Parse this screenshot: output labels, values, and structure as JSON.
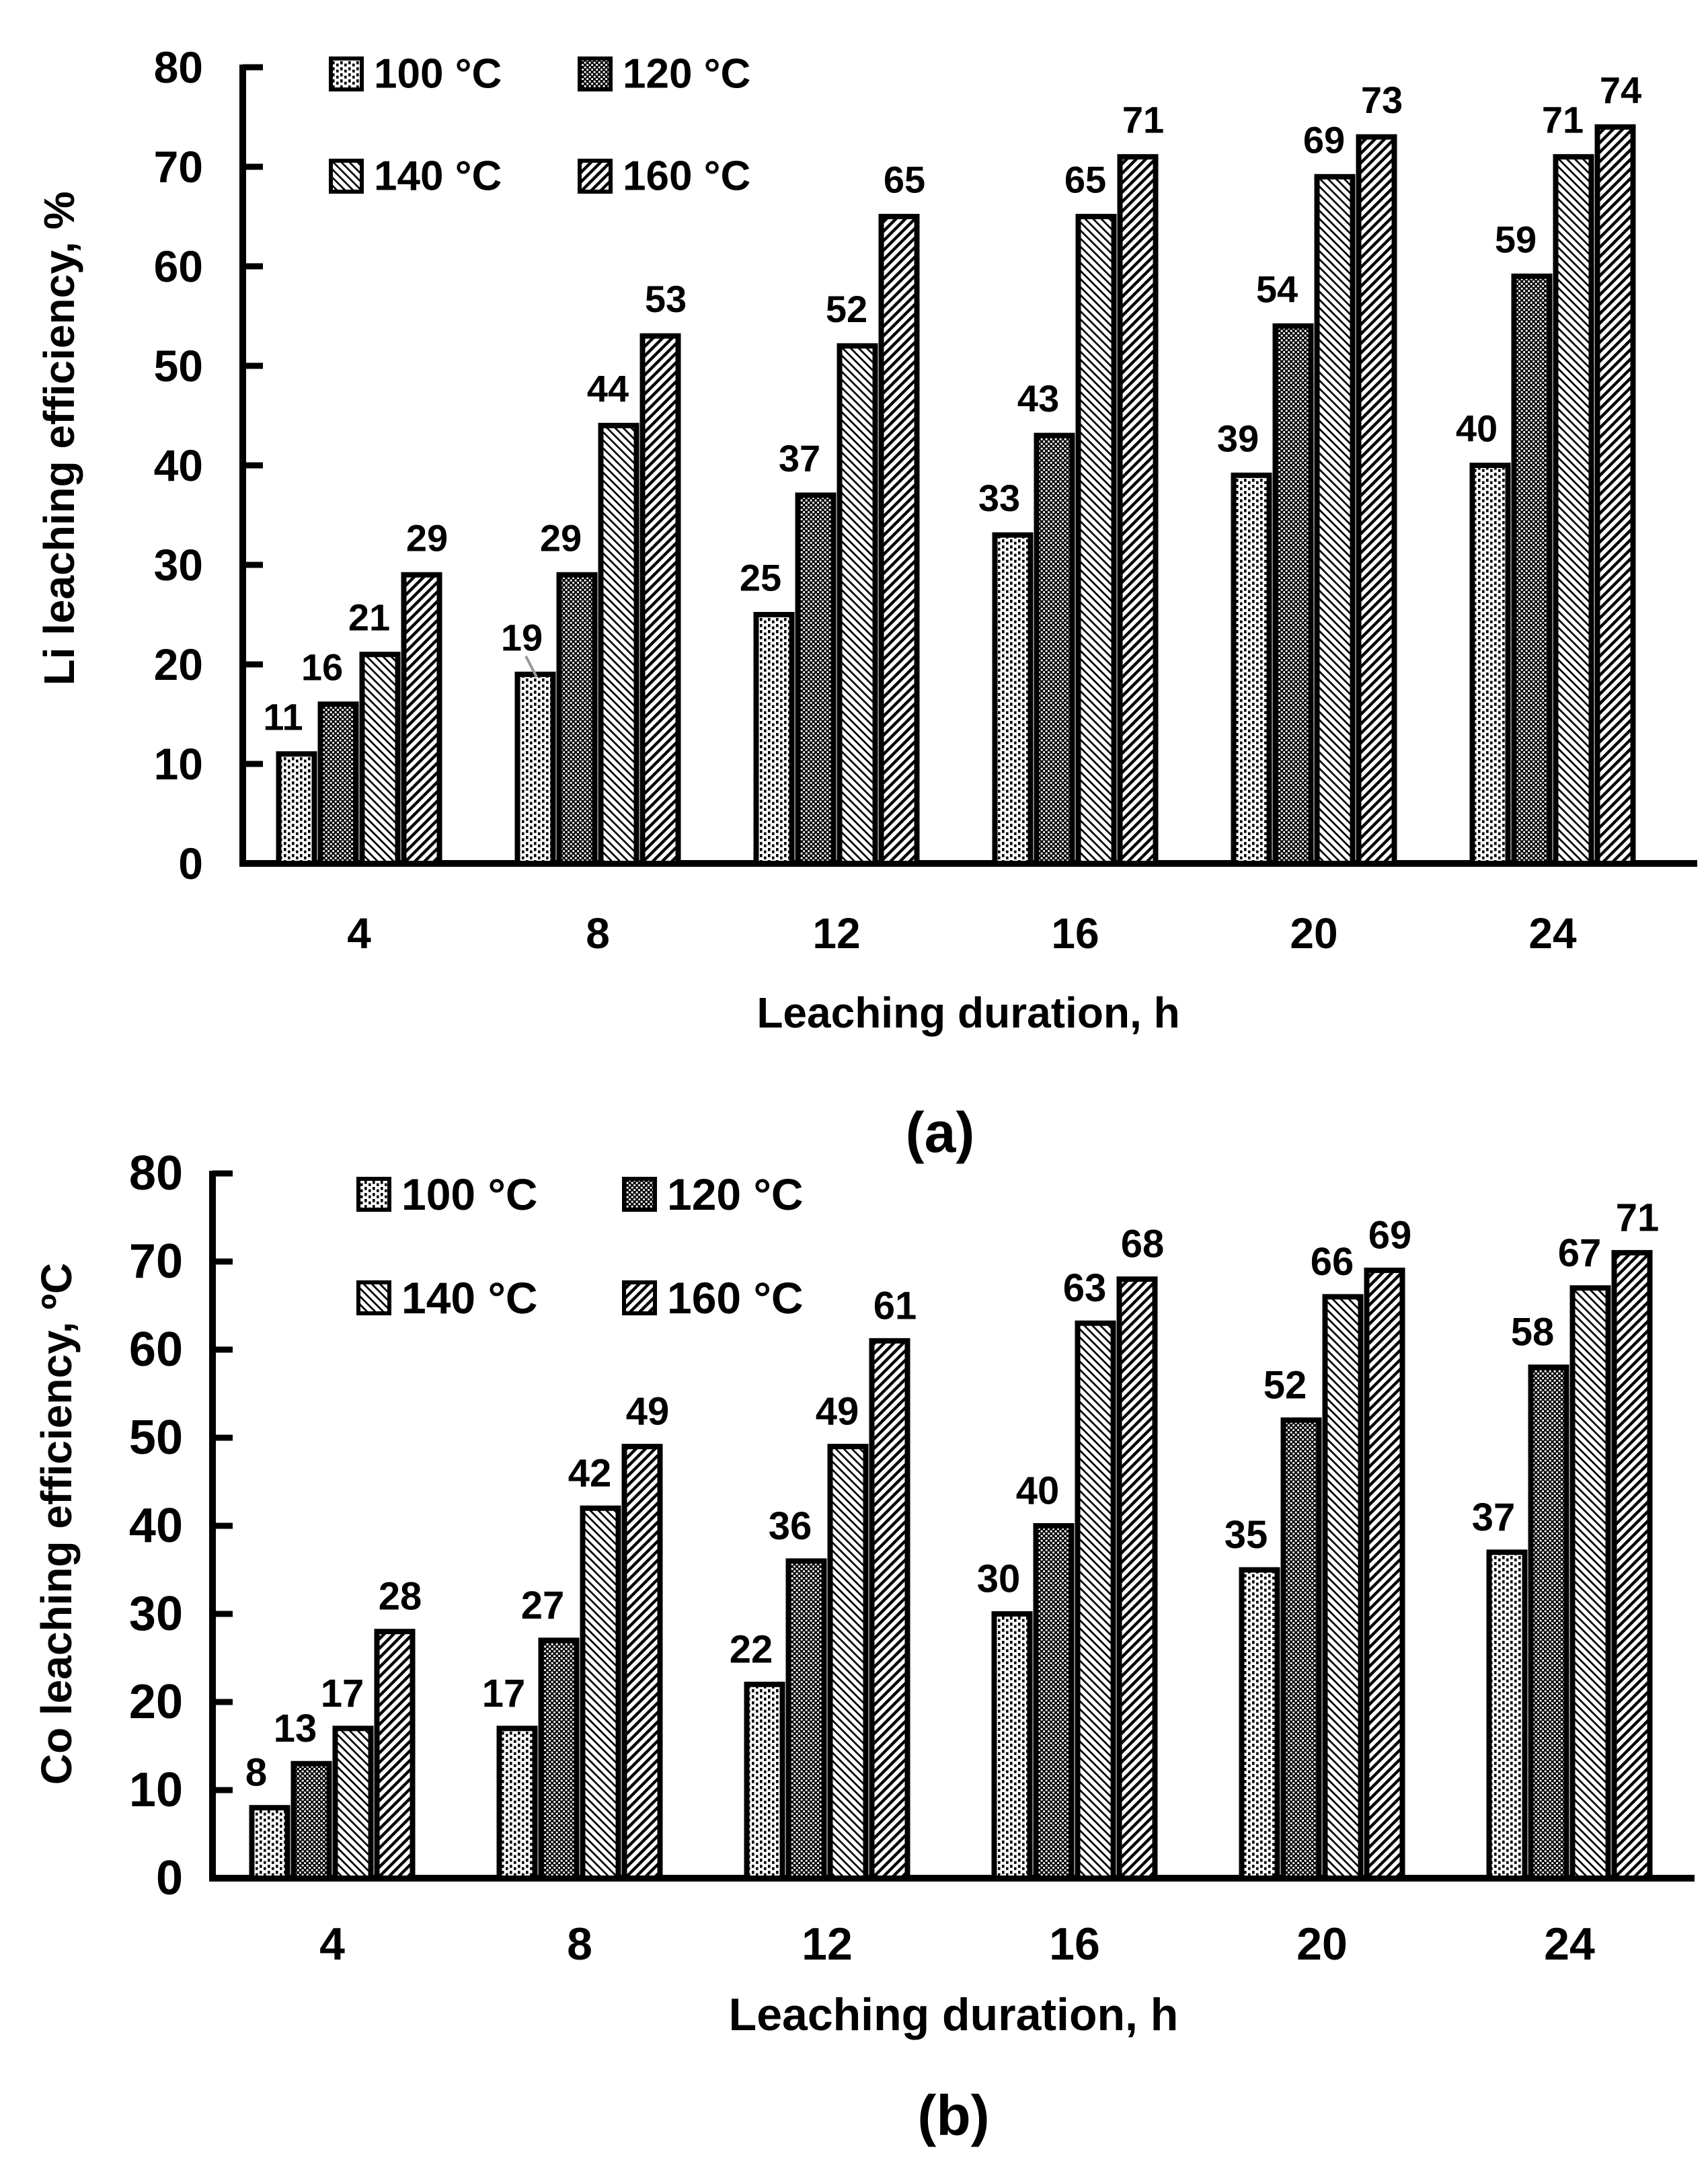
{
  "figure": {
    "background": "#ffffff",
    "ink_color": "#000000",
    "leader_line_color": "#999999"
  },
  "chart_data": [
    {
      "type": "bar",
      "panel_label": "(a)",
      "title": "",
      "xlabel": "Leaching duration, h",
      "ylabel": "Li leaching efficiency, %",
      "categories": [
        "4",
        "8",
        "12",
        "16",
        "20",
        "24"
      ],
      "series": [
        {
          "name": "100 °C",
          "pattern": "dots-light",
          "values": [
            11,
            19,
            25,
            33,
            39,
            40
          ]
        },
        {
          "name": "120 °C",
          "pattern": "checker-dense",
          "values": [
            16,
            29,
            37,
            43,
            54,
            59
          ]
        },
        {
          "name": "140 °C",
          "pattern": "hatch-backslash-thin",
          "values": [
            21,
            44,
            52,
            65,
            69,
            71
          ]
        },
        {
          "name": "160 °C",
          "pattern": "hatch-slash-thick",
          "values": [
            29,
            53,
            65,
            71,
            73,
            74
          ]
        }
      ],
      "bar_value_labels_shown": true,
      "ylim": [
        0,
        80
      ],
      "yticks": [
        0,
        10,
        20,
        30,
        40,
        50,
        60,
        70,
        80
      ],
      "grid": false,
      "legend_position": "top-left-inside",
      "legend_rows": [
        [
          "100 °C",
          "120 °C"
        ],
        [
          "140 °C",
          "160 °C"
        ]
      ],
      "label_leader_lines": [
        {
          "series": 0,
          "category_index": 1
        }
      ]
    },
    {
      "type": "bar",
      "panel_label": "(b)",
      "title": "",
      "xlabel": "Leaching duration, h",
      "ylabel": "Co leaching efficiency, ºC",
      "categories": [
        "4",
        "8",
        "12",
        "16",
        "20",
        "24"
      ],
      "series": [
        {
          "name": "100 °C",
          "pattern": "dots-light",
          "values": [
            8,
            17,
            22,
            30,
            35,
            37
          ]
        },
        {
          "name": "120 °C",
          "pattern": "checker-dense",
          "values": [
            13,
            27,
            36,
            40,
            52,
            58
          ]
        },
        {
          "name": "140 °C",
          "pattern": "hatch-backslash-thin",
          "values": [
            17,
            42,
            49,
            63,
            66,
            67
          ]
        },
        {
          "name": "160 °C",
          "pattern": "hatch-slash-thick",
          "values": [
            28,
            49,
            61,
            68,
            69,
            71
          ]
        }
      ],
      "bar_value_labels_shown": true,
      "ylim": [
        0,
        80
      ],
      "yticks": [
        0,
        10,
        20,
        30,
        40,
        50,
        60,
        70,
        80
      ],
      "grid": false,
      "legend_position": "top-left-inside",
      "legend_rows": [
        [
          "100 °C",
          "120 °C"
        ],
        [
          "140 °C",
          "160 °C"
        ]
      ],
      "label_leader_lines": []
    }
  ]
}
